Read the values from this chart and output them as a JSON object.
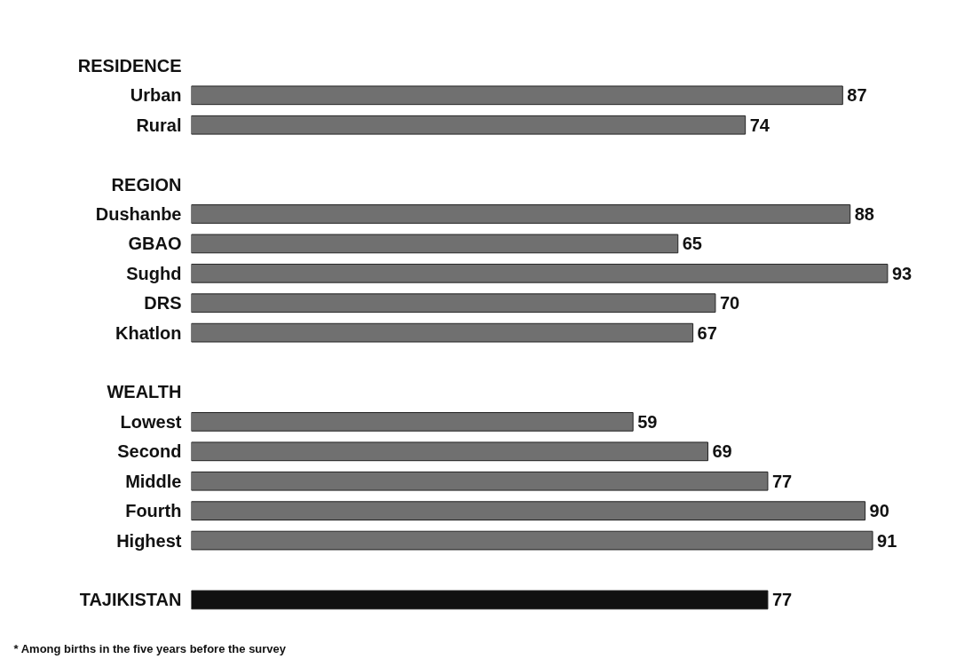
{
  "chart_data": {
    "type": "bar",
    "orientation": "horizontal",
    "data_labels": true,
    "tick_labels": "y",
    "grid": false,
    "categories": [
      "RESIDENCE",
      "Urban",
      "Rural",
      null,
      "REGION",
      "Dushanbe",
      "GBAO",
      "Sughd",
      "DRS",
      "Khatlon",
      null,
      "WEALTH",
      "Lowest",
      "Second",
      "Middle",
      "Fourth",
      "Highest",
      null,
      "TAJIKISTAN"
    ],
    "values": [
      null,
      87,
      74,
      null,
      null,
      88,
      65,
      93,
      70,
      67,
      null,
      null,
      59,
      69,
      77,
      90,
      91,
      null,
      77
    ],
    "colors": [
      "#707070",
      "#707070",
      "#707070",
      "#707070",
      "#707070",
      "#707070",
      "#707070",
      "#707070",
      "#707070",
      "#707070",
      "#707070",
      "#707070",
      "#707070",
      "#707070",
      "#707070",
      "#707070",
      "#707070",
      "#707070",
      "#111111"
    ],
    "annotations": [
      "* Among births in the five years before the survey"
    ]
  }
}
